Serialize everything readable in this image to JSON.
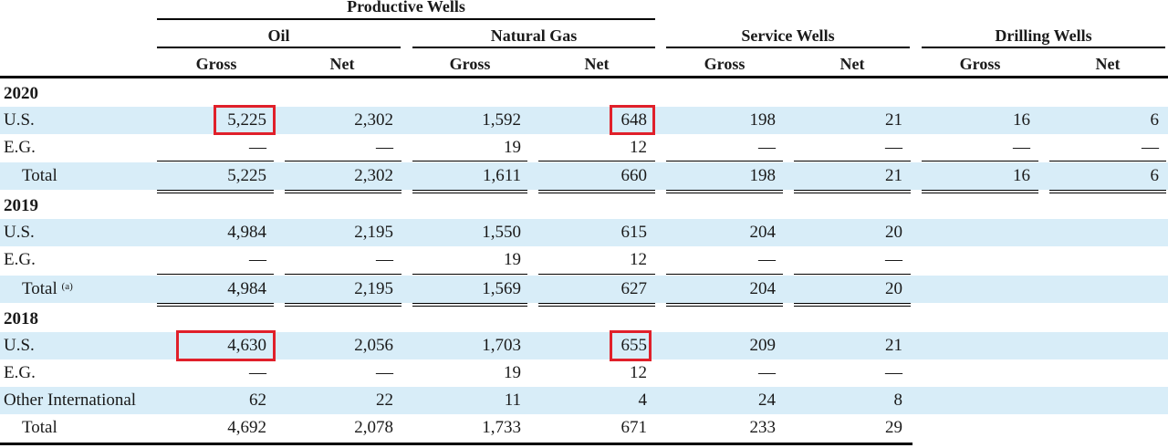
{
  "header": {
    "productive_wells": "Productive Wells",
    "oil": "Oil",
    "natural_gas": "Natural Gas",
    "service_wells": "Service Wells",
    "drilling_wells": "Drilling Wells",
    "gross": "Gross",
    "net": "Net"
  },
  "sections": [
    {
      "year": "2020",
      "rows": [
        {
          "label": "U.S.",
          "values": [
            "5,225",
            "2,302",
            "1,592",
            "648",
            "198",
            "21",
            "16",
            "6"
          ]
        },
        {
          "label": "E.G.",
          "values": [
            "—",
            "—",
            "19",
            "12",
            "—",
            "—",
            "—",
            "—"
          ]
        },
        {
          "label": "Total",
          "values": [
            "5,225",
            "2,302",
            "1,611",
            "660",
            "198",
            "21",
            "16",
            "6"
          ]
        }
      ]
    },
    {
      "year": "2019",
      "rows": [
        {
          "label": "U.S.",
          "values": [
            "4,984",
            "2,195",
            "1,550",
            "615",
            "204",
            "20"
          ]
        },
        {
          "label": "E.G.",
          "values": [
            "—",
            "—",
            "19",
            "12",
            "—",
            "—"
          ]
        },
        {
          "label": "Total",
          "footnote": "(a)",
          "values": [
            "4,984",
            "2,195",
            "1,569",
            "627",
            "204",
            "20"
          ]
        }
      ]
    },
    {
      "year": "2018",
      "rows": [
        {
          "label": "U.S.",
          "values": [
            "4,630",
            "2,056",
            "1,703",
            "655",
            "209",
            "21"
          ]
        },
        {
          "label": "E.G.",
          "values": [
            "—",
            "—",
            "19",
            "12",
            "—",
            "—"
          ]
        },
        {
          "label": "Other International",
          "values": [
            "62",
            "22",
            "11",
            "4",
            "24",
            "8"
          ]
        },
        {
          "label": "Total",
          "values": [
            "4,692",
            "2,078",
            "1,733",
            "671",
            "233",
            "29"
          ]
        }
      ]
    }
  ],
  "highlight_color": "#e0202a"
}
